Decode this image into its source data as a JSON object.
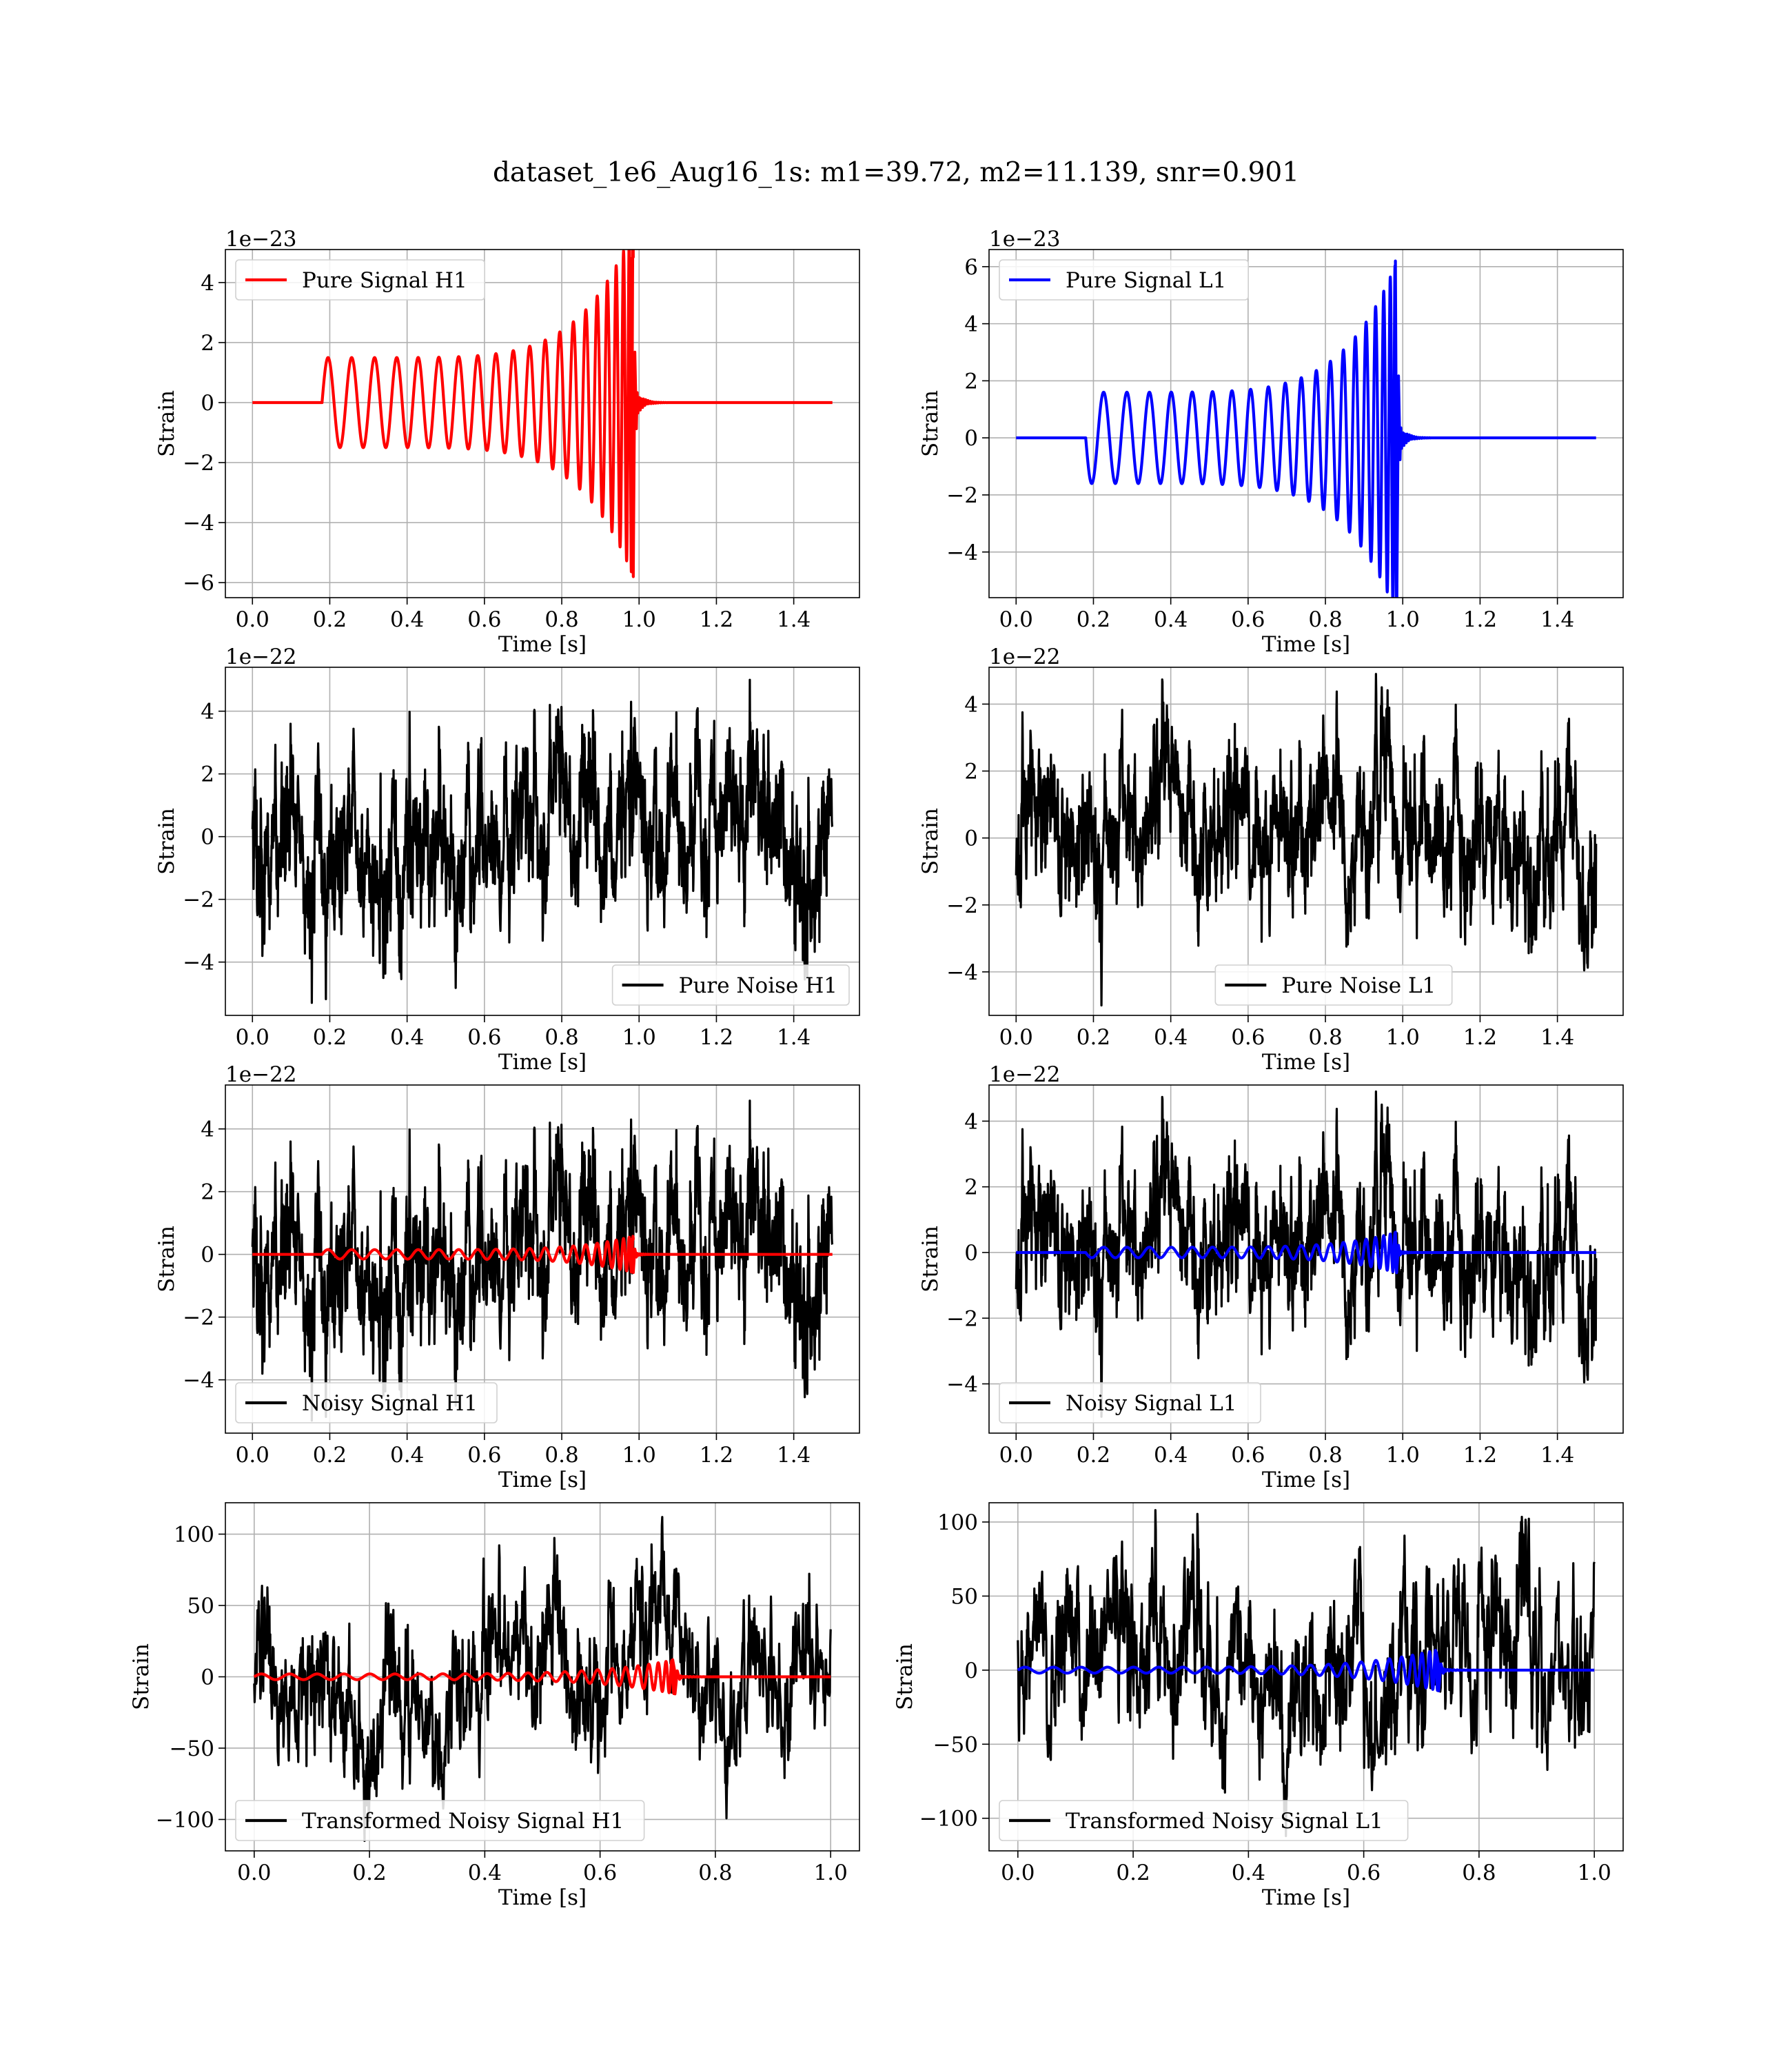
{
  "figure": {
    "title": "dataset_1e6_Aug16_1s: m1=39.72, m2=11.139, snr=0.901"
  },
  "colors": {
    "h1": "#ff0000",
    "l1": "#0000ff",
    "noise": "#000000",
    "grid": "#b0b0b0"
  },
  "chart_data": [
    {
      "type": "line",
      "panel": "pure-signal-h1",
      "xlabel": "Time [s]",
      "ylabel": "Strain",
      "offset_text": "1e−23",
      "xlim": [
        -0.07,
        1.57
      ],
      "ylim": [
        -6.5,
        5.1
      ],
      "xticks": [
        0.0,
        0.2,
        0.4,
        0.6,
        0.8,
        1.0,
        1.2,
        1.4
      ],
      "yticks": [
        -6,
        -4,
        -2,
        0,
        2,
        4
      ],
      "legend": {
        "location": "upper left",
        "entries": [
          {
            "label": "Pure Signal H1",
            "color": "#ff0000"
          }
        ]
      },
      "series": [
        {
          "name": "Pure Signal H1",
          "kind": "chirp",
          "color": "#ff0000",
          "t_start": 0.18,
          "t_merge": 0.985,
          "t_end": 1.5,
          "amp_start": 1.5,
          "amp_peak": 4.8,
          "amp_min_peak": -5.8,
          "f_start": 16,
          "f_end": 90
        }
      ]
    },
    {
      "type": "line",
      "panel": "pure-signal-l1",
      "xlabel": "Time [s]",
      "ylabel": "Strain",
      "offset_text": "1e−23",
      "xlim": [
        -0.07,
        1.57
      ],
      "ylim": [
        -5.6,
        6.6
      ],
      "xticks": [
        0.0,
        0.2,
        0.4,
        0.6,
        0.8,
        1.0,
        1.2,
        1.4
      ],
      "yticks": [
        -4,
        -2,
        0,
        2,
        4,
        6
      ],
      "legend": {
        "location": "upper left",
        "entries": [
          {
            "label": "Pure Signal L1",
            "color": "#0000ff"
          }
        ]
      },
      "series": [
        {
          "name": "Pure Signal L1",
          "kind": "chirp",
          "color": "#0000ff",
          "t_start": 0.18,
          "t_merge": 0.985,
          "t_end": 1.5,
          "amp_start": -1.6,
          "amp_peak": 6.2,
          "amp_min_peak": -5.1,
          "f_start": 16,
          "f_end": 90
        }
      ]
    },
    {
      "type": "line",
      "panel": "pure-noise-h1",
      "xlabel": "Time [s]",
      "ylabel": "Strain",
      "offset_text": "1e−22",
      "xlim": [
        -0.07,
        1.57
      ],
      "ylim": [
        -5.7,
        5.4
      ],
      "xticks": [
        0.0,
        0.2,
        0.4,
        0.6,
        0.8,
        1.0,
        1.2,
        1.4
      ],
      "yticks": [
        -4,
        -2,
        0,
        2,
        4
      ],
      "legend": {
        "location": "lower right",
        "entries": [
          {
            "label": "Pure Noise H1",
            "color": "#000000"
          }
        ]
      },
      "series": [
        {
          "name": "Pure Noise H1",
          "kind": "noise",
          "color": "#000000",
          "t_start": 0.0,
          "t_end": 1.5,
          "max": 5.0,
          "min": -5.3,
          "seed": 11
        }
      ]
    },
    {
      "type": "line",
      "panel": "pure-noise-l1",
      "xlabel": "Time [s]",
      "ylabel": "Strain",
      "offset_text": "1e−22",
      "xlim": [
        -0.07,
        1.57
      ],
      "ylim": [
        -5.3,
        5.1
      ],
      "xticks": [
        0.0,
        0.2,
        0.4,
        0.6,
        0.8,
        1.0,
        1.2,
        1.4
      ],
      "yticks": [
        -4,
        -2,
        0,
        2,
        4
      ],
      "legend": {
        "location": "lower center",
        "entries": [
          {
            "label": "Pure Noise L1",
            "color": "#000000"
          }
        ]
      },
      "series": [
        {
          "name": "Pure Noise L1",
          "kind": "noise",
          "color": "#000000",
          "t_start": 0.0,
          "t_end": 1.5,
          "max": 4.9,
          "min": -5.0,
          "seed": 23
        }
      ]
    },
    {
      "type": "line",
      "panel": "noisy-signal-h1",
      "xlabel": "Time [s]",
      "ylabel": "Strain",
      "offset_text": "1e−22",
      "xlim": [
        -0.07,
        1.57
      ],
      "ylim": [
        -5.7,
        5.4
      ],
      "xticks": [
        0.0,
        0.2,
        0.4,
        0.6,
        0.8,
        1.0,
        1.2,
        1.4
      ],
      "yticks": [
        -4,
        -2,
        0,
        2,
        4
      ],
      "legend": {
        "location": "lower left",
        "entries": [
          {
            "label": "Noisy Signal H1",
            "color": "#000000"
          }
        ]
      },
      "series": [
        {
          "name": "Noisy Signal H1",
          "kind": "noise",
          "color": "#000000",
          "t_start": 0.0,
          "t_end": 1.5,
          "max": 4.9,
          "min": -5.3,
          "seed": 11
        },
        {
          "kind": "chirp",
          "color": "#ff0000",
          "t_start": 0.18,
          "t_merge": 0.985,
          "t_end": 1.5,
          "amp_start": 0.15,
          "amp_peak": 0.48,
          "amp_min_peak": -0.58,
          "f_start": 16,
          "f_end": 90
        }
      ]
    },
    {
      "type": "line",
      "panel": "noisy-signal-l1",
      "xlabel": "Time [s]",
      "ylabel": "Strain",
      "offset_text": "1e−22",
      "xlim": [
        -0.07,
        1.57
      ],
      "ylim": [
        -5.5,
        5.1
      ],
      "xticks": [
        0.0,
        0.2,
        0.4,
        0.6,
        0.8,
        1.0,
        1.2,
        1.4
      ],
      "yticks": [
        -4,
        -2,
        0,
        2,
        4
      ],
      "legend": {
        "location": "lower left",
        "entries": [
          {
            "label": "Noisy Signal L1",
            "color": "#000000"
          }
        ]
      },
      "series": [
        {
          "name": "Noisy Signal L1",
          "kind": "noise",
          "color": "#000000",
          "t_start": 0.0,
          "t_end": 1.5,
          "max": 4.9,
          "min": -5.0,
          "seed": 23
        },
        {
          "kind": "chirp",
          "color": "#0000ff",
          "t_start": 0.18,
          "t_merge": 0.985,
          "t_end": 1.5,
          "amp_start": -0.16,
          "amp_peak": 0.62,
          "amp_min_peak": -0.51,
          "f_start": 16,
          "f_end": 90
        }
      ]
    },
    {
      "type": "line",
      "panel": "transformed-noisy-signal-h1",
      "xlabel": "Time [s]",
      "ylabel": "Strain",
      "offset_text": "",
      "xlim": [
        -0.05,
        1.05
      ],
      "ylim": [
        -122,
        122
      ],
      "xticks": [
        0.0,
        0.2,
        0.4,
        0.6,
        0.8,
        1.0
      ],
      "yticks": [
        -100,
        -50,
        0,
        50,
        100
      ],
      "legend": {
        "location": "lower left",
        "entries": [
          {
            "label": "Transformed Noisy Signal H1",
            "color": "#000000"
          }
        ]
      },
      "series": [
        {
          "name": "Transformed Noisy Signal H1",
          "kind": "noise",
          "color": "#000000",
          "t_start": 0.0,
          "t_end": 1.0,
          "max": 112,
          "min": -115,
          "seed": 37
        },
        {
          "kind": "chirp",
          "color": "#ff0000",
          "t_start": 0.0,
          "t_merge": 0.73,
          "t_end": 1.0,
          "amp_start": 2,
          "amp_peak": 12,
          "amp_min_peak": -12,
          "f_start": 20,
          "f_end": 130
        }
      ]
    },
    {
      "type": "line",
      "panel": "transformed-noisy-signal-l1",
      "xlabel": "Time [s]",
      "ylabel": "Strain",
      "offset_text": "",
      "xlim": [
        -0.05,
        1.05
      ],
      "ylim": [
        -122,
        113
      ],
      "xticks": [
        0.0,
        0.2,
        0.4,
        0.6,
        0.8,
        1.0
      ],
      "yticks": [
        -100,
        -50,
        0,
        50,
        100
      ],
      "legend": {
        "location": "lower left",
        "entries": [
          {
            "label": "Transformed Noisy Signal L1",
            "color": "#000000"
          }
        ]
      },
      "series": [
        {
          "name": "Transformed Noisy Signal L1",
          "kind": "noise",
          "color": "#000000",
          "t_start": 0.0,
          "t_end": 1.0,
          "max": 108,
          "min": -112,
          "seed": 51
        },
        {
          "kind": "chirp",
          "color": "#0000ff",
          "t_start": 0.0,
          "t_merge": 0.73,
          "t_end": 1.0,
          "amp_start": 2,
          "amp_peak": 12,
          "amp_min_peak": -14,
          "f_start": 20,
          "f_end": 130
        }
      ]
    }
  ]
}
